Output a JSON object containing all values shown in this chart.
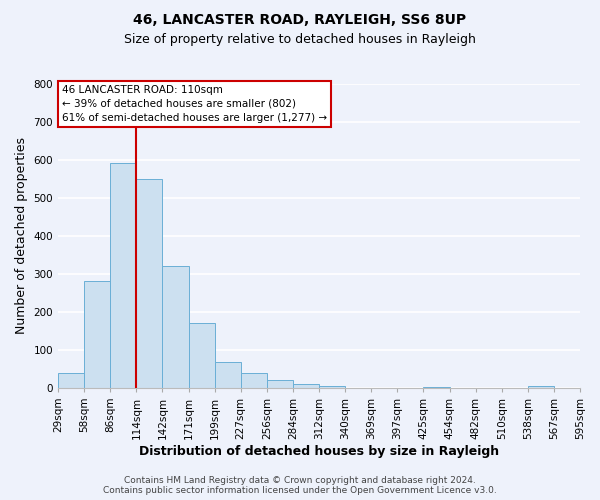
{
  "title": "46, LANCASTER ROAD, RAYLEIGH, SS6 8UP",
  "subtitle": "Size of property relative to detached houses in Rayleigh",
  "xlabel": "Distribution of detached houses by size in Rayleigh",
  "ylabel": "Number of detached properties",
  "bar_values": [
    38,
    280,
    592,
    550,
    322,
    170,
    67,
    38,
    20,
    10,
    5,
    0,
    0,
    0,
    2,
    0,
    0,
    0,
    5,
    0
  ],
  "bin_labels": [
    "29sqm",
    "58sqm",
    "86sqm",
    "114sqm",
    "142sqm",
    "171sqm",
    "199sqm",
    "227sqm",
    "256sqm",
    "284sqm",
    "312sqm",
    "340sqm",
    "369sqm",
    "397sqm",
    "425sqm",
    "454sqm",
    "482sqm",
    "510sqm",
    "538sqm",
    "567sqm",
    "595sqm"
  ],
  "bar_color": "#cce0f0",
  "bar_edge_color": "#6aafd6",
  "vline_x_bar_index": 3,
  "vline_color": "#cc0000",
  "annotation_text_line1": "46 LANCASTER ROAD: 110sqm",
  "annotation_text_line2": "← 39% of detached houses are smaller (802)",
  "annotation_text_line3": "61% of semi-detached houses are larger (1,277) →",
  "annotation_box_color": "#ffffff",
  "annotation_box_edge": "#cc0000",
  "ylim": [
    0,
    800
  ],
  "yticks": [
    0,
    100,
    200,
    300,
    400,
    500,
    600,
    700,
    800
  ],
  "footer_line1": "Contains HM Land Registry data © Crown copyright and database right 2024.",
  "footer_line2": "Contains public sector information licensed under the Open Government Licence v3.0.",
  "background_color": "#eef2fb",
  "grid_color": "#ffffff",
  "title_fontsize": 10,
  "subtitle_fontsize": 9,
  "axis_label_fontsize": 9,
  "tick_fontsize": 7.5,
  "footer_fontsize": 6.5
}
